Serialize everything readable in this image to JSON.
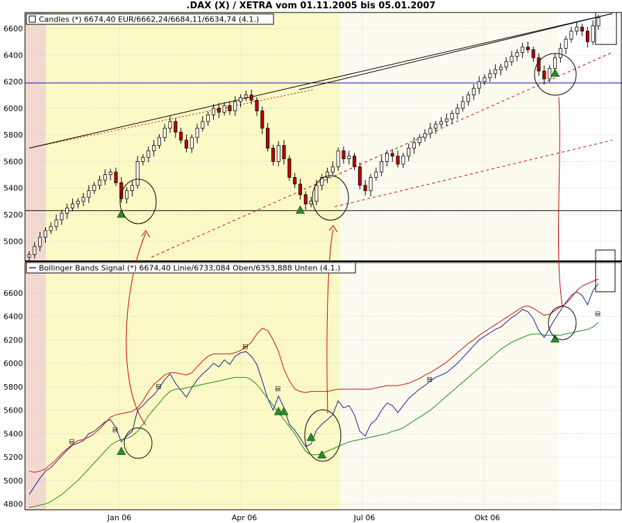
{
  "title": ".DAX (X) / XETRA vom 01.11.2005 bis 05.01.2007",
  "colors": {
    "zone_red": "#f2d9cf",
    "zone_yellow": "#fbf9c6",
    "zone_cream": "#fdfbef",
    "candle_up": "#ffffff",
    "candle_down": "#c00000",
    "signal": "#2a8a2a",
    "bb_line": "#1a1a8c",
    "bb_upper": "#cc1010",
    "bb_lower": "#1a8a1a",
    "hline_blue": "#1a1ab4",
    "annotation": "#cc0000"
  },
  "x_ticks": [
    "Jan 06",
    "Apr 06",
    "Jul 06",
    "Okt 06"
  ],
  "chart_data": [
    {
      "type": "candlestick",
      "legend": "Candles (*) 6674,40 EUR/6662,24/6684,11/6634,74 (4.1.)",
      "ylim": [
        4850,
        6720
      ],
      "y_ticks": [
        5000,
        5200,
        5400,
        5600,
        5800,
        6000,
        6200,
        6400,
        6600
      ],
      "hlines": [
        {
          "value": 6190,
          "color": "#1a1ab4"
        },
        {
          "value": 5230,
          "color": "#000000"
        }
      ],
      "trendlines": [
        {
          "from": [
            0,
            5700
          ],
          "to": [
            287,
            6140
          ],
          "style": "dotted",
          "color": "#cc0000"
        },
        {
          "from": [
            287,
            6140
          ],
          "to": [
            605,
            6712
          ],
          "style": "solid",
          "color": "#000000"
        },
        {
          "from": [
            0,
            5700
          ],
          "to": [
            605,
            6712
          ],
          "style": "solid",
          "color": "#000000"
        },
        {
          "from": [
            130,
            4880
          ],
          "to": [
            605,
            6420
          ],
          "style": "dashed",
          "color": "#cc0000"
        },
        {
          "from": [
            325,
            5260
          ],
          "to": [
            605,
            5760
          ],
          "style": "dashed",
          "color": "#cc0000"
        }
      ],
      "closes": [
        4900,
        4960,
        5030,
        5080,
        5110,
        5160,
        5210,
        5250,
        5280,
        5300,
        5330,
        5380,
        5420,
        5460,
        5500,
        5520,
        5440,
        5320,
        5380,
        5420,
        5600,
        5630,
        5680,
        5720,
        5780,
        5850,
        5900,
        5820,
        5760,
        5700,
        5780,
        5850,
        5900,
        5950,
        6000,
        5970,
        6020,
        5980,
        6050,
        6080,
        6100,
        6060,
        5980,
        5850,
        5700,
        5600,
        5720,
        5620,
        5480,
        5430,
        5350,
        5280,
        5300,
        5420,
        5480,
        5520,
        5560,
        5680,
        5620,
        5640,
        5560,
        5420,
        5380,
        5480,
        5520,
        5600,
        5660,
        5640,
        5580,
        5640,
        5700,
        5740,
        5780,
        5810,
        5850,
        5880,
        5900,
        5920,
        5960,
        6000,
        6050,
        6100,
        6150,
        6200,
        6230,
        6260,
        6290,
        6310,
        6350,
        6390,
        6420,
        6460,
        6440,
        6380,
        6280,
        6220,
        6300,
        6380,
        6450,
        6520,
        6580,
        6610,
        6580,
        6500,
        6620,
        6680
      ]
    },
    {
      "type": "line",
      "legend": "Bollinger Bands Signal (*) 6674,40 Linie/6733,084 Oben/6353,888 Unten (4.1.)",
      "ylim": [
        4750,
        6860
      ],
      "y_ticks": [
        4800,
        5000,
        5200,
        5400,
        5600,
        5800,
        6000,
        6200,
        6400,
        6600
      ],
      "series": [
        {
          "values": [
            4880,
            4950,
            5020,
            5080,
            5110,
            5160,
            5210,
            5260,
            5300,
            5320,
            5340,
            5400,
            5420,
            5460,
            5500,
            5520,
            5450,
            5330,
            5380,
            5420,
            5600,
            5640,
            5690,
            5730,
            5790,
            5860,
            5910,
            5830,
            5770,
            5710,
            5790,
            5860,
            5910,
            5950,
            6000,
            5970,
            6030,
            5990,
            6060,
            6090,
            6100,
            6060,
            5990,
            5850,
            5700,
            5600,
            5720,
            5620,
            5480,
            5430,
            5360,
            5290,
            5310,
            5430,
            5480,
            5520,
            5560,
            5680,
            5620,
            5640,
            5560,
            5420,
            5380,
            5480,
            5520,
            5600,
            5660,
            5640,
            5580,
            5640,
            5700,
            5740,
            5780,
            5810,
            5850,
            5880,
            5900,
            5920,
            5960,
            6000,
            6050,
            6100,
            6150,
            6200,
            6230,
            6260,
            6290,
            6310,
            6350,
            6390,
            6420,
            6460,
            6440,
            6380,
            6280,
            6220,
            6300,
            6380,
            6450,
            6520,
            6580,
            6610,
            6580,
            6500,
            6620,
            6680
          ]
        },
        {
          "values": [
            5080,
            5070,
            5080,
            5100,
            5140,
            5180,
            5230,
            5270,
            5310,
            5340,
            5350,
            5370,
            5400,
            5440,
            5490,
            5540,
            5560,
            5570,
            5580,
            5590,
            5620,
            5680,
            5760,
            5820,
            5860,
            5900,
            5920,
            5920,
            5910,
            5900,
            5920,
            5970,
            6020,
            6060,
            6080,
            6080,
            6080,
            6080,
            6090,
            6110,
            6140,
            6180,
            6250,
            6300,
            6280,
            6200,
            6100,
            5950,
            5850,
            5780,
            5760,
            5750,
            5760,
            5760,
            5760,
            5760,
            5770,
            5780,
            5780,
            5780,
            5780,
            5780,
            5780,
            5780,
            5790,
            5800,
            5810,
            5810,
            5810,
            5820,
            5830,
            5850,
            5870,
            5900,
            5920,
            5950,
            5980,
            6010,
            6050,
            6090,
            6130,
            6170,
            6200,
            6240,
            6270,
            6300,
            6330,
            6360,
            6390,
            6420,
            6450,
            6480,
            6490,
            6470,
            6440,
            6410,
            6420,
            6450,
            6480,
            6510,
            6560,
            6620,
            6660,
            6680,
            6700,
            6720
          ]
        },
        {
          "values": [
            4770,
            4780,
            4790,
            4800,
            4820,
            4850,
            4880,
            4920,
            4960,
            5000,
            5050,
            5100,
            5150,
            5200,
            5250,
            5300,
            5330,
            5350,
            5360,
            5380,
            5420,
            5480,
            5550,
            5610,
            5660,
            5720,
            5760,
            5780,
            5780,
            5790,
            5800,
            5810,
            5820,
            5830,
            5840,
            5850,
            5860,
            5870,
            5880,
            5880,
            5880,
            5860,
            5820,
            5760,
            5700,
            5640,
            5580,
            5520,
            5460,
            5400,
            5320,
            5250,
            5220,
            5220,
            5230,
            5250,
            5270,
            5290,
            5310,
            5330,
            5340,
            5350,
            5360,
            5370,
            5380,
            5390,
            5400,
            5420,
            5430,
            5450,
            5480,
            5510,
            5540,
            5570,
            5600,
            5640,
            5680,
            5720,
            5760,
            5800,
            5840,
            5880,
            5920,
            5960,
            6000,
            6040,
            6080,
            6120,
            6150,
            6180,
            6200,
            6220,
            6240,
            6250,
            6250,
            6240,
            6240,
            6240,
            6240,
            6250,
            6260,
            6270,
            6280,
            6290,
            6310,
            6350
          ]
        }
      ],
      "signals": [
        24,
        58,
        60,
        77,
        81,
        201
      ]
    }
  ]
}
